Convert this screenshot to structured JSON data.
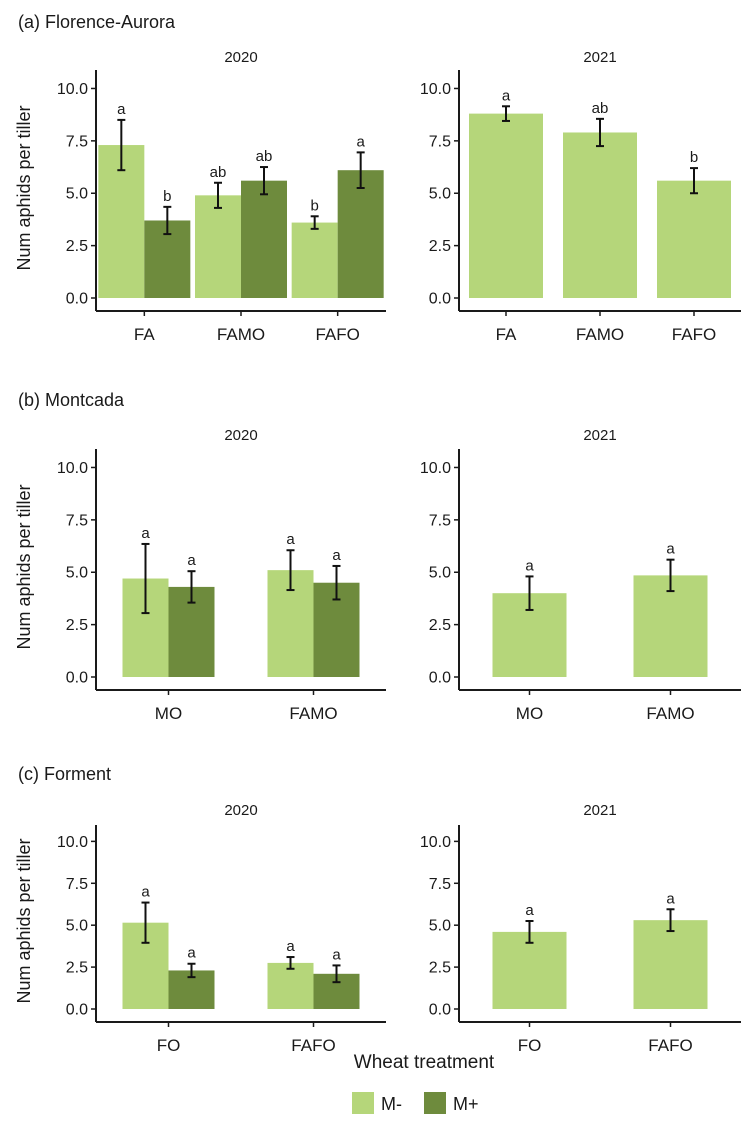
{
  "colors": {
    "m_minus": "#b5d67a",
    "m_plus": "#6e8b3d",
    "axis": "#1a1a1a",
    "error": "#111111"
  },
  "legend": {
    "items": [
      {
        "label": "M-",
        "color": "#b5d67a"
      },
      {
        "label": "M+",
        "color": "#6e8b3d"
      }
    ]
  },
  "xlabel": "Wheat treatment",
  "chart_data": [
    {
      "type": "bar",
      "panel": "(a) Florence-Aurora",
      "title": "2020",
      "ylabel": "Num aphids per tiller",
      "ylim": [
        0,
        10.5
      ],
      "yticks": [
        "0.0",
        "2.5",
        "5.0",
        "7.5",
        "10.0"
      ],
      "categories": [
        "FA",
        "FAMO",
        "FAFO"
      ],
      "series": [
        {
          "name": "M-",
          "values": [
            7.3,
            4.9,
            3.6
          ],
          "err": [
            1.2,
            0.6,
            0.3
          ],
          "labels": [
            "a",
            "ab",
            "b"
          ]
        },
        {
          "name": "M+",
          "values": [
            3.7,
            5.6,
            6.1
          ],
          "err": [
            0.65,
            0.65,
            0.85
          ],
          "labels": [
            "b",
            "ab",
            "a"
          ]
        }
      ]
    },
    {
      "type": "bar",
      "title": "2021",
      "ylim": [
        0,
        10.5
      ],
      "yticks": [
        "0.0",
        "2.5",
        "5.0",
        "7.5",
        "10.0"
      ],
      "categories": [
        "FA",
        "FAMO",
        "FAFO"
      ],
      "series": [
        {
          "name": "M-",
          "values": [
            8.8,
            7.9,
            5.6
          ],
          "err": [
            0.35,
            0.65,
            0.6
          ],
          "labels": [
            "a",
            "ab",
            "b"
          ]
        }
      ]
    },
    {
      "type": "bar",
      "panel": "(b) Montcada",
      "title": "2020",
      "ylabel": "Num aphids per tiller",
      "ylim": [
        0,
        10.5
      ],
      "yticks": [
        "0.0",
        "2.5",
        "5.0",
        "7.5",
        "10.0"
      ],
      "categories": [
        "MO",
        "FAMO"
      ],
      "series": [
        {
          "name": "M-",
          "values": [
            4.7,
            5.1
          ],
          "err": [
            1.65,
            0.95
          ],
          "labels": [
            "a",
            "a"
          ]
        },
        {
          "name": "M+",
          "values": [
            4.3,
            4.5
          ],
          "err": [
            0.75,
            0.8
          ],
          "labels": [
            "a",
            "a"
          ]
        }
      ]
    },
    {
      "type": "bar",
      "title": "2021",
      "ylim": [
        0,
        10.5
      ],
      "yticks": [
        "0.0",
        "2.5",
        "5.0",
        "7.5",
        "10.0"
      ],
      "categories": [
        "MO",
        "FAMO"
      ],
      "series": [
        {
          "name": "M-",
          "values": [
            4.0,
            4.85
          ],
          "err": [
            0.8,
            0.75
          ],
          "labels": [
            "a",
            "a"
          ]
        }
      ]
    },
    {
      "type": "bar",
      "panel": "(c) Forment",
      "title": "2020",
      "ylabel": "Num aphids per tiller",
      "ylim": [
        0,
        10.5
      ],
      "yticks": [
        "0.0",
        "2.5",
        "5.0",
        "7.5",
        "10.0"
      ],
      "categories": [
        "FO",
        "FAFO"
      ],
      "series": [
        {
          "name": "M-",
          "values": [
            5.15,
            2.75
          ],
          "err": [
            1.2,
            0.35
          ],
          "labels": [
            "a",
            "a"
          ]
        },
        {
          "name": "M+",
          "values": [
            2.3,
            2.1
          ],
          "err": [
            0.4,
            0.5
          ],
          "labels": [
            "a",
            "a"
          ]
        }
      ]
    },
    {
      "type": "bar",
      "title": "2021",
      "ylim": [
        0,
        10.5
      ],
      "yticks": [
        "0.0",
        "2.5",
        "5.0",
        "7.5",
        "10.0"
      ],
      "categories": [
        "FO",
        "FAFO"
      ],
      "series": [
        {
          "name": "M-",
          "values": [
            4.6,
            5.3
          ],
          "err": [
            0.65,
            0.65
          ],
          "labels": [
            "a",
            "a"
          ]
        }
      ]
    }
  ]
}
